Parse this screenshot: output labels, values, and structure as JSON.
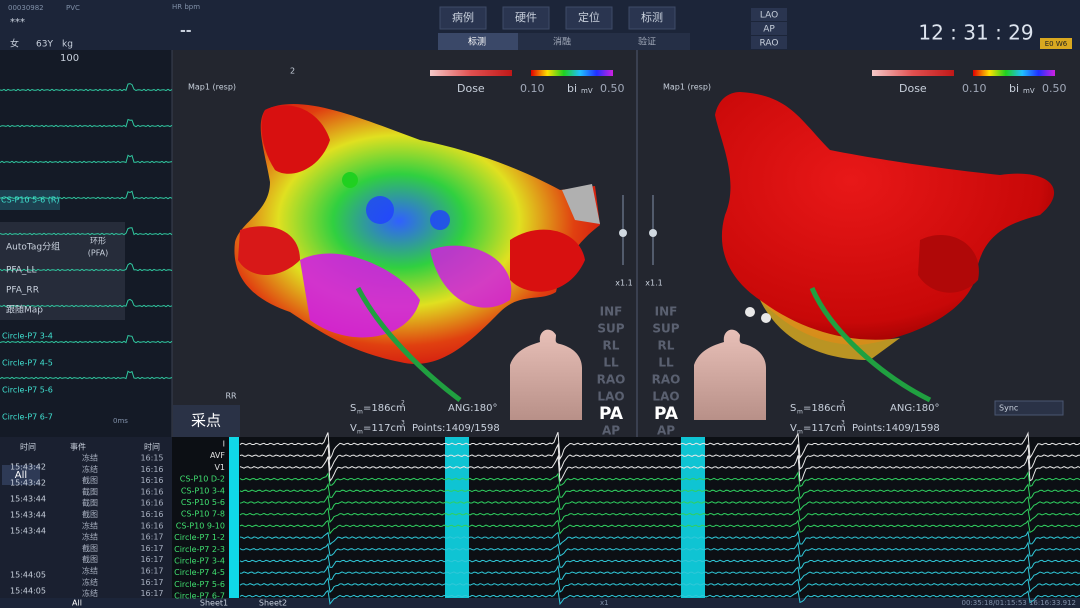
{
  "header": {
    "patient_id": "00030982",
    "mode": "PVC",
    "name": "***",
    "sex": "女",
    "age": "63Y",
    "weight_unit": "kg",
    "hr_label": "HR bpm",
    "hr_value": "--",
    "tabs": [
      "病例",
      "硬件",
      "定位",
      "标测"
    ],
    "subtabs": [
      "标测",
      "消融",
      "验证"
    ],
    "views": [
      "LAO",
      "AP",
      "RAO"
    ],
    "clock": "12 : 31 : 29",
    "version": "E0 W6"
  },
  "left_panel": {
    "scale": "100",
    "channel": "CS-P10 5-6 (R)",
    "autotag": {
      "title": "AutoTag分组",
      "group": [
        "环形",
        "(PFA)"
      ],
      "items": [
        "PFA_LL",
        "PFA_RR",
        "跟随Map"
      ]
    },
    "channels": [
      "Circle-P7 3-4",
      "Circle-P7 4-5",
      "Circle-P7 5-6",
      "Circle-P7 6-7"
    ],
    "time_scale": "0ms"
  },
  "toolbar": {
    "point_count": "2",
    "capture": "采点",
    "rr": "RR",
    "sync": "Sync"
  },
  "maps": [
    {
      "name": "Map1 (resp)",
      "dose_label": "Dose",
      "dose_value": "0.10",
      "bi_label": "bi",
      "bi_unit": "mV",
      "bi_value": "0.50",
      "area": [
        "S",
        "m",
        "=186cm",
        "2"
      ],
      "angle": "ANG:180°",
      "volume": [
        "V",
        "m",
        "=117cm",
        "3"
      ],
      "points": "Points:1409/1598"
    },
    {
      "name": "Map1 (resp)",
      "dose_label": "Dose",
      "dose_value": "0.10",
      "bi_label": "bi",
      "bi_unit": "mV",
      "bi_value": "0.50",
      "area": [
        "S",
        "m",
        "=186cm",
        "2"
      ],
      "angle": "ANG:180°",
      "volume": [
        "V",
        "m",
        "=117cm",
        "3"
      ],
      "points": "Points:1409/1598"
    }
  ],
  "orientation": {
    "views": [
      "INF",
      "SUP",
      "RL",
      "LL",
      "RAO",
      "LAO",
      "PA",
      "AP"
    ],
    "zoom": "x1.1"
  },
  "events": {
    "headers": [
      "时间",
      "事件",
      "时间"
    ],
    "filter": "All",
    "left_times": [
      "15:43:42",
      "15:43:42",
      "15:43:44",
      "15:43:44",
      "15:43:44",
      "15:44:05",
      "15:44:05"
    ],
    "rows": [
      [
        "冻结",
        "16:15"
      ],
      [
        "冻结",
        "16:16"
      ],
      [
        "截图",
        "16:16"
      ],
      [
        "截图",
        "16:16"
      ],
      [
        "截图",
        "16:16"
      ],
      [
        "截图",
        "16:16"
      ],
      [
        "冻结",
        "16:16"
      ],
      [
        "冻结",
        "16:17"
      ],
      [
        "截图",
        "16:17"
      ],
      [
        "截图",
        "16:17"
      ],
      [
        "冻结",
        "16:17"
      ],
      [
        "冻结",
        "16:17"
      ],
      [
        "冻结",
        "16:17"
      ]
    ]
  },
  "ecg": {
    "channels": [
      "I",
      "AVF",
      "V1",
      "CS-P10 D-2",
      "CS-P10 3-4",
      "CS-P10 5-6",
      "CS-P10 7-8",
      "CS-P10 9-10",
      "Circle-P7 1-2",
      "Circle-P7 2-3",
      "Circle-P7 3-4",
      "Circle-P7 4-5",
      "Circle-P7 5-6",
      "Circle-P7 6-7"
    ],
    "speed": "x1"
  },
  "footer": {
    "filter": "All",
    "sheets": [
      "Sheet1",
      "Sheet2"
    ],
    "timestamp": "00:35:18/01:15:53 16:16:33.912"
  }
}
